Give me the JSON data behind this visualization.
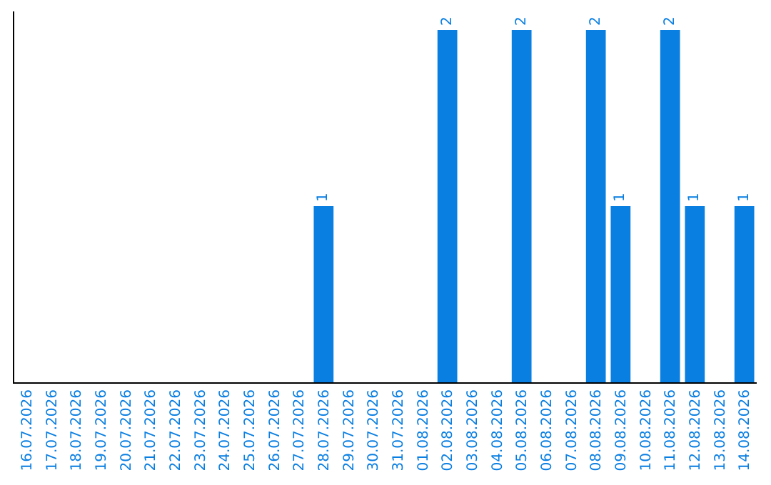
{
  "chart_data": {
    "type": "bar",
    "categories": [
      "16.07.2026",
      "17.07.2026",
      "18.07.2026",
      "19.07.2026",
      "20.07.2026",
      "21.07.2026",
      "22.07.2026",
      "23.07.2026",
      "24.07.2026",
      "25.07.2026",
      "26.07.2026",
      "27.07.2026",
      "28.07.2026",
      "29.07.2026",
      "30.07.2026",
      "31.07.2026",
      "01.08.2026",
      "02.08.2026",
      "03.08.2026",
      "04.08.2026",
      "05.08.2026",
      "06.08.2026",
      "07.08.2026",
      "08.08.2026",
      "09.08.2026",
      "10.08.2026",
      "11.08.2026",
      "12.08.2026",
      "13.08.2026",
      "14.08.2026"
    ],
    "values": [
      null,
      null,
      null,
      null,
      null,
      null,
      null,
      null,
      null,
      null,
      null,
      null,
      1,
      null,
      null,
      null,
      null,
      2,
      null,
      null,
      2,
      null,
      null,
      2,
      1,
      null,
      2,
      1,
      null,
      1
    ],
    "value_labels": [
      null,
      null,
      null,
      null,
      null,
      null,
      null,
      null,
      null,
      null,
      null,
      null,
      "1",
      null,
      null,
      null,
      null,
      "2",
      null,
      null,
      "2",
      null,
      null,
      "2",
      "1",
      null,
      "2",
      "1",
      null,
      "1"
    ],
    "color": "#0a7fe2",
    "grid": false,
    "legend": false,
    "tick_labels": "x"
  }
}
